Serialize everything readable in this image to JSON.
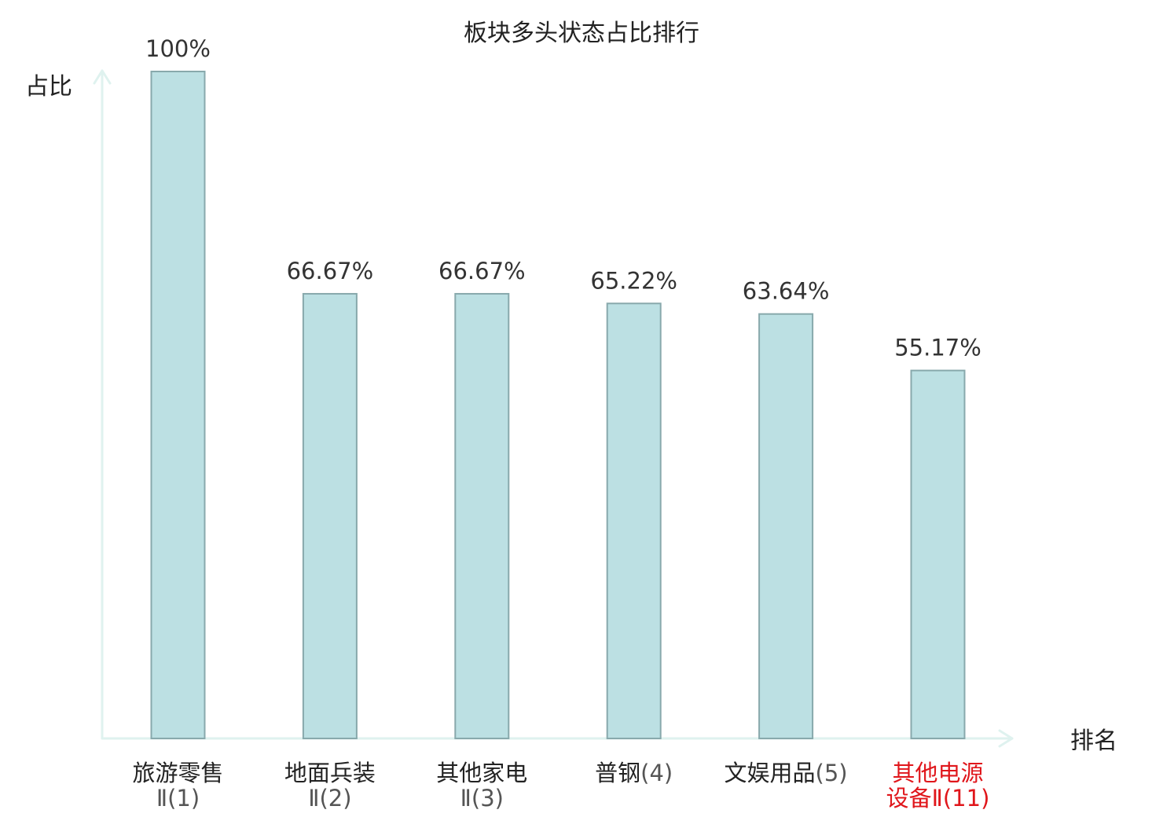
{
  "chart_data": {
    "type": "bar",
    "title": "板块多头状态占比排行",
    "ylabel": "占比",
    "xlabel": "排名",
    "ylim": [
      0,
      100
    ],
    "grid": false,
    "categories": [
      {
        "line1": "旅游零售",
        "line2": "Ⅱ(1)",
        "highlight": false
      },
      {
        "line1": "地面兵装",
        "line2": "Ⅱ(2)",
        "highlight": false
      },
      {
        "line1": "其他家电",
        "line2": "Ⅱ(3)",
        "highlight": false
      },
      {
        "line1": "普钢(4)",
        "line2": "",
        "highlight": false
      },
      {
        "line1": "文娱用品(5)",
        "line2": "",
        "highlight": false
      },
      {
        "line1": "其他电源",
        "line2": "设备Ⅱ(11)",
        "highlight": true
      }
    ],
    "values": [
      100,
      66.67,
      66.67,
      65.22,
      63.64,
      55.17
    ],
    "value_labels": [
      "100%",
      "66.67%",
      "66.67%",
      "65.22%",
      "63.64%",
      "55.17%"
    ]
  },
  "colors": {
    "bar_fill": "#bce0e3",
    "bar_stroke": "#88a9ac",
    "axis": "#dff2ef",
    "text": "#222222",
    "highlight": "#e0161b"
  }
}
